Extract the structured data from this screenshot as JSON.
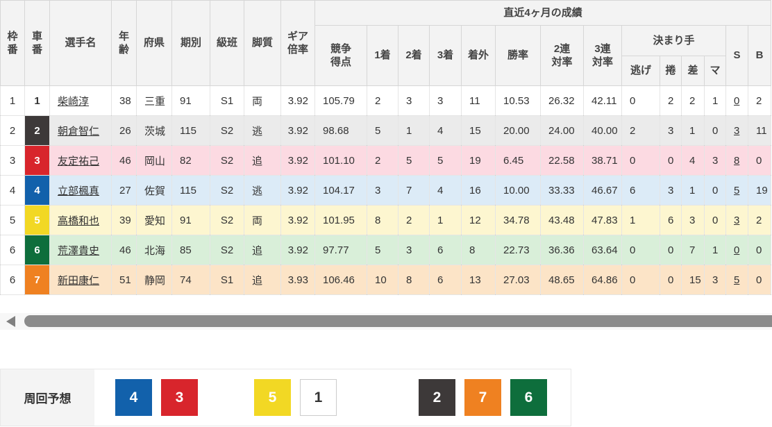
{
  "colors": {
    "car_bg": {
      "1": "#ffffff",
      "2": "#3d3939",
      "3": "#d8252c",
      "4": "#1261ab",
      "5": "#f2d824",
      "6": "#0e6e3c",
      "7": "#ef8121"
    },
    "car_fg": {
      "1": "#333333",
      "2": "#ffffff",
      "3": "#ffffff",
      "4": "#ffffff",
      "5": "#ffffff",
      "6": "#ffffff",
      "7": "#ffffff"
    },
    "car_border": {
      "1": "#cccccc"
    },
    "row_tint": {
      "1": "#ffffff",
      "2": "#ebebeb",
      "3": "#fcdae2",
      "4": "#dcebf7",
      "5": "#fdf6d0",
      "6": "#d9efd9",
      "7": "#fce4c7"
    }
  },
  "table": {
    "group_header": "直近4ヶ月の成績",
    "headers": {
      "waku": "枠\n番",
      "car": "車\n番",
      "name": "選手名",
      "age": "年\n齢",
      "pref": "府県",
      "period": "期別",
      "cls": "級班",
      "leg": "脚質",
      "gear": "ギア\n倍率",
      "points": "競争\n得点",
      "p1": "1着",
      "p2": "2着",
      "p3": "3着",
      "out": "着外",
      "win": "勝率",
      "ren2": "2連\n対率",
      "ren3": "3連\n対率",
      "kimarite": "決まり手",
      "nige": "逃げ",
      "maku": "捲",
      "sashi": "差",
      "ma": "マ",
      "s": "S",
      "b": "B"
    },
    "rows": [
      {
        "waku": "1",
        "car": "1",
        "name": "柴崎淳",
        "age": "38",
        "pref": "三重",
        "period": "91",
        "cls": "S1",
        "leg": "両",
        "gear": "3.92",
        "points": "105.79",
        "p1": "2",
        "p2": "3",
        "p3": "3",
        "out": "11",
        "win": "10.53",
        "ren2": "26.32",
        "ren3": "42.11",
        "nige": "0",
        "maku": "2",
        "sashi": "2",
        "ma": "1",
        "s": "0",
        "b": "2"
      },
      {
        "waku": "2",
        "car": "2",
        "name": "朝倉智仁",
        "age": "26",
        "pref": "茨城",
        "period": "115",
        "cls": "S2",
        "leg": "逃",
        "gear": "3.92",
        "points": "98.68",
        "p1": "5",
        "p2": "1",
        "p3": "4",
        "out": "15",
        "win": "20.00",
        "ren2": "24.00",
        "ren3": "40.00",
        "nige": "2",
        "maku": "3",
        "sashi": "1",
        "ma": "0",
        "s": "3",
        "b": "11"
      },
      {
        "waku": "3",
        "car": "3",
        "name": "友定祐己",
        "age": "46",
        "pref": "岡山",
        "period": "82",
        "cls": "S2",
        "leg": "追",
        "gear": "3.92",
        "points": "101.10",
        "p1": "2",
        "p2": "5",
        "p3": "5",
        "out": "19",
        "win": "6.45",
        "ren2": "22.58",
        "ren3": "38.71",
        "nige": "0",
        "maku": "0",
        "sashi": "4",
        "ma": "3",
        "s": "8",
        "b": "0"
      },
      {
        "waku": "4",
        "car": "4",
        "name": "立部楓真",
        "age": "27",
        "pref": "佐賀",
        "period": "115",
        "cls": "S2",
        "leg": "逃",
        "gear": "3.92",
        "points": "104.17",
        "p1": "3",
        "p2": "7",
        "p3": "4",
        "out": "16",
        "win": "10.00",
        "ren2": "33.33",
        "ren3": "46.67",
        "nige": "6",
        "maku": "3",
        "sashi": "1",
        "ma": "0",
        "s": "5",
        "b": "19"
      },
      {
        "waku": "5",
        "car": "5",
        "name": "高橋和也",
        "age": "39",
        "pref": "愛知",
        "period": "91",
        "cls": "S2",
        "leg": "両",
        "gear": "3.92",
        "points": "101.95",
        "p1": "8",
        "p2": "2",
        "p3": "1",
        "out": "12",
        "win": "34.78",
        "ren2": "43.48",
        "ren3": "47.83",
        "nige": "1",
        "maku": "6",
        "sashi": "3",
        "ma": "0",
        "s": "3",
        "b": "2"
      },
      {
        "waku": "6",
        "car": "6",
        "name": "荒澤貴史",
        "age": "46",
        "pref": "北海",
        "period": "85",
        "cls": "S2",
        "leg": "追",
        "gear": "3.92",
        "points": "97.77",
        "p1": "5",
        "p2": "3",
        "p3": "6",
        "out": "8",
        "win": "22.73",
        "ren2": "36.36",
        "ren3": "63.64",
        "nige": "0",
        "maku": "0",
        "sashi": "7",
        "ma": "1",
        "s": "0",
        "b": "0"
      },
      {
        "waku": "6",
        "car": "7",
        "name": "新田康仁",
        "age": "51",
        "pref": "静岡",
        "period": "74",
        "cls": "S1",
        "leg": "追",
        "gear": "3.93",
        "points": "106.46",
        "p1": "10",
        "p2": "8",
        "p3": "6",
        "out": "13",
        "win": "27.03",
        "ren2": "48.65",
        "ren3": "64.86",
        "nige": "0",
        "maku": "0",
        "sashi": "15",
        "ma": "3",
        "s": "5",
        "b": "0"
      }
    ]
  },
  "prediction": {
    "label": "周回予想",
    "groups": [
      [
        "4",
        "3"
      ],
      [
        "5",
        "1"
      ],
      [
        "2",
        "7",
        "6"
      ]
    ]
  }
}
